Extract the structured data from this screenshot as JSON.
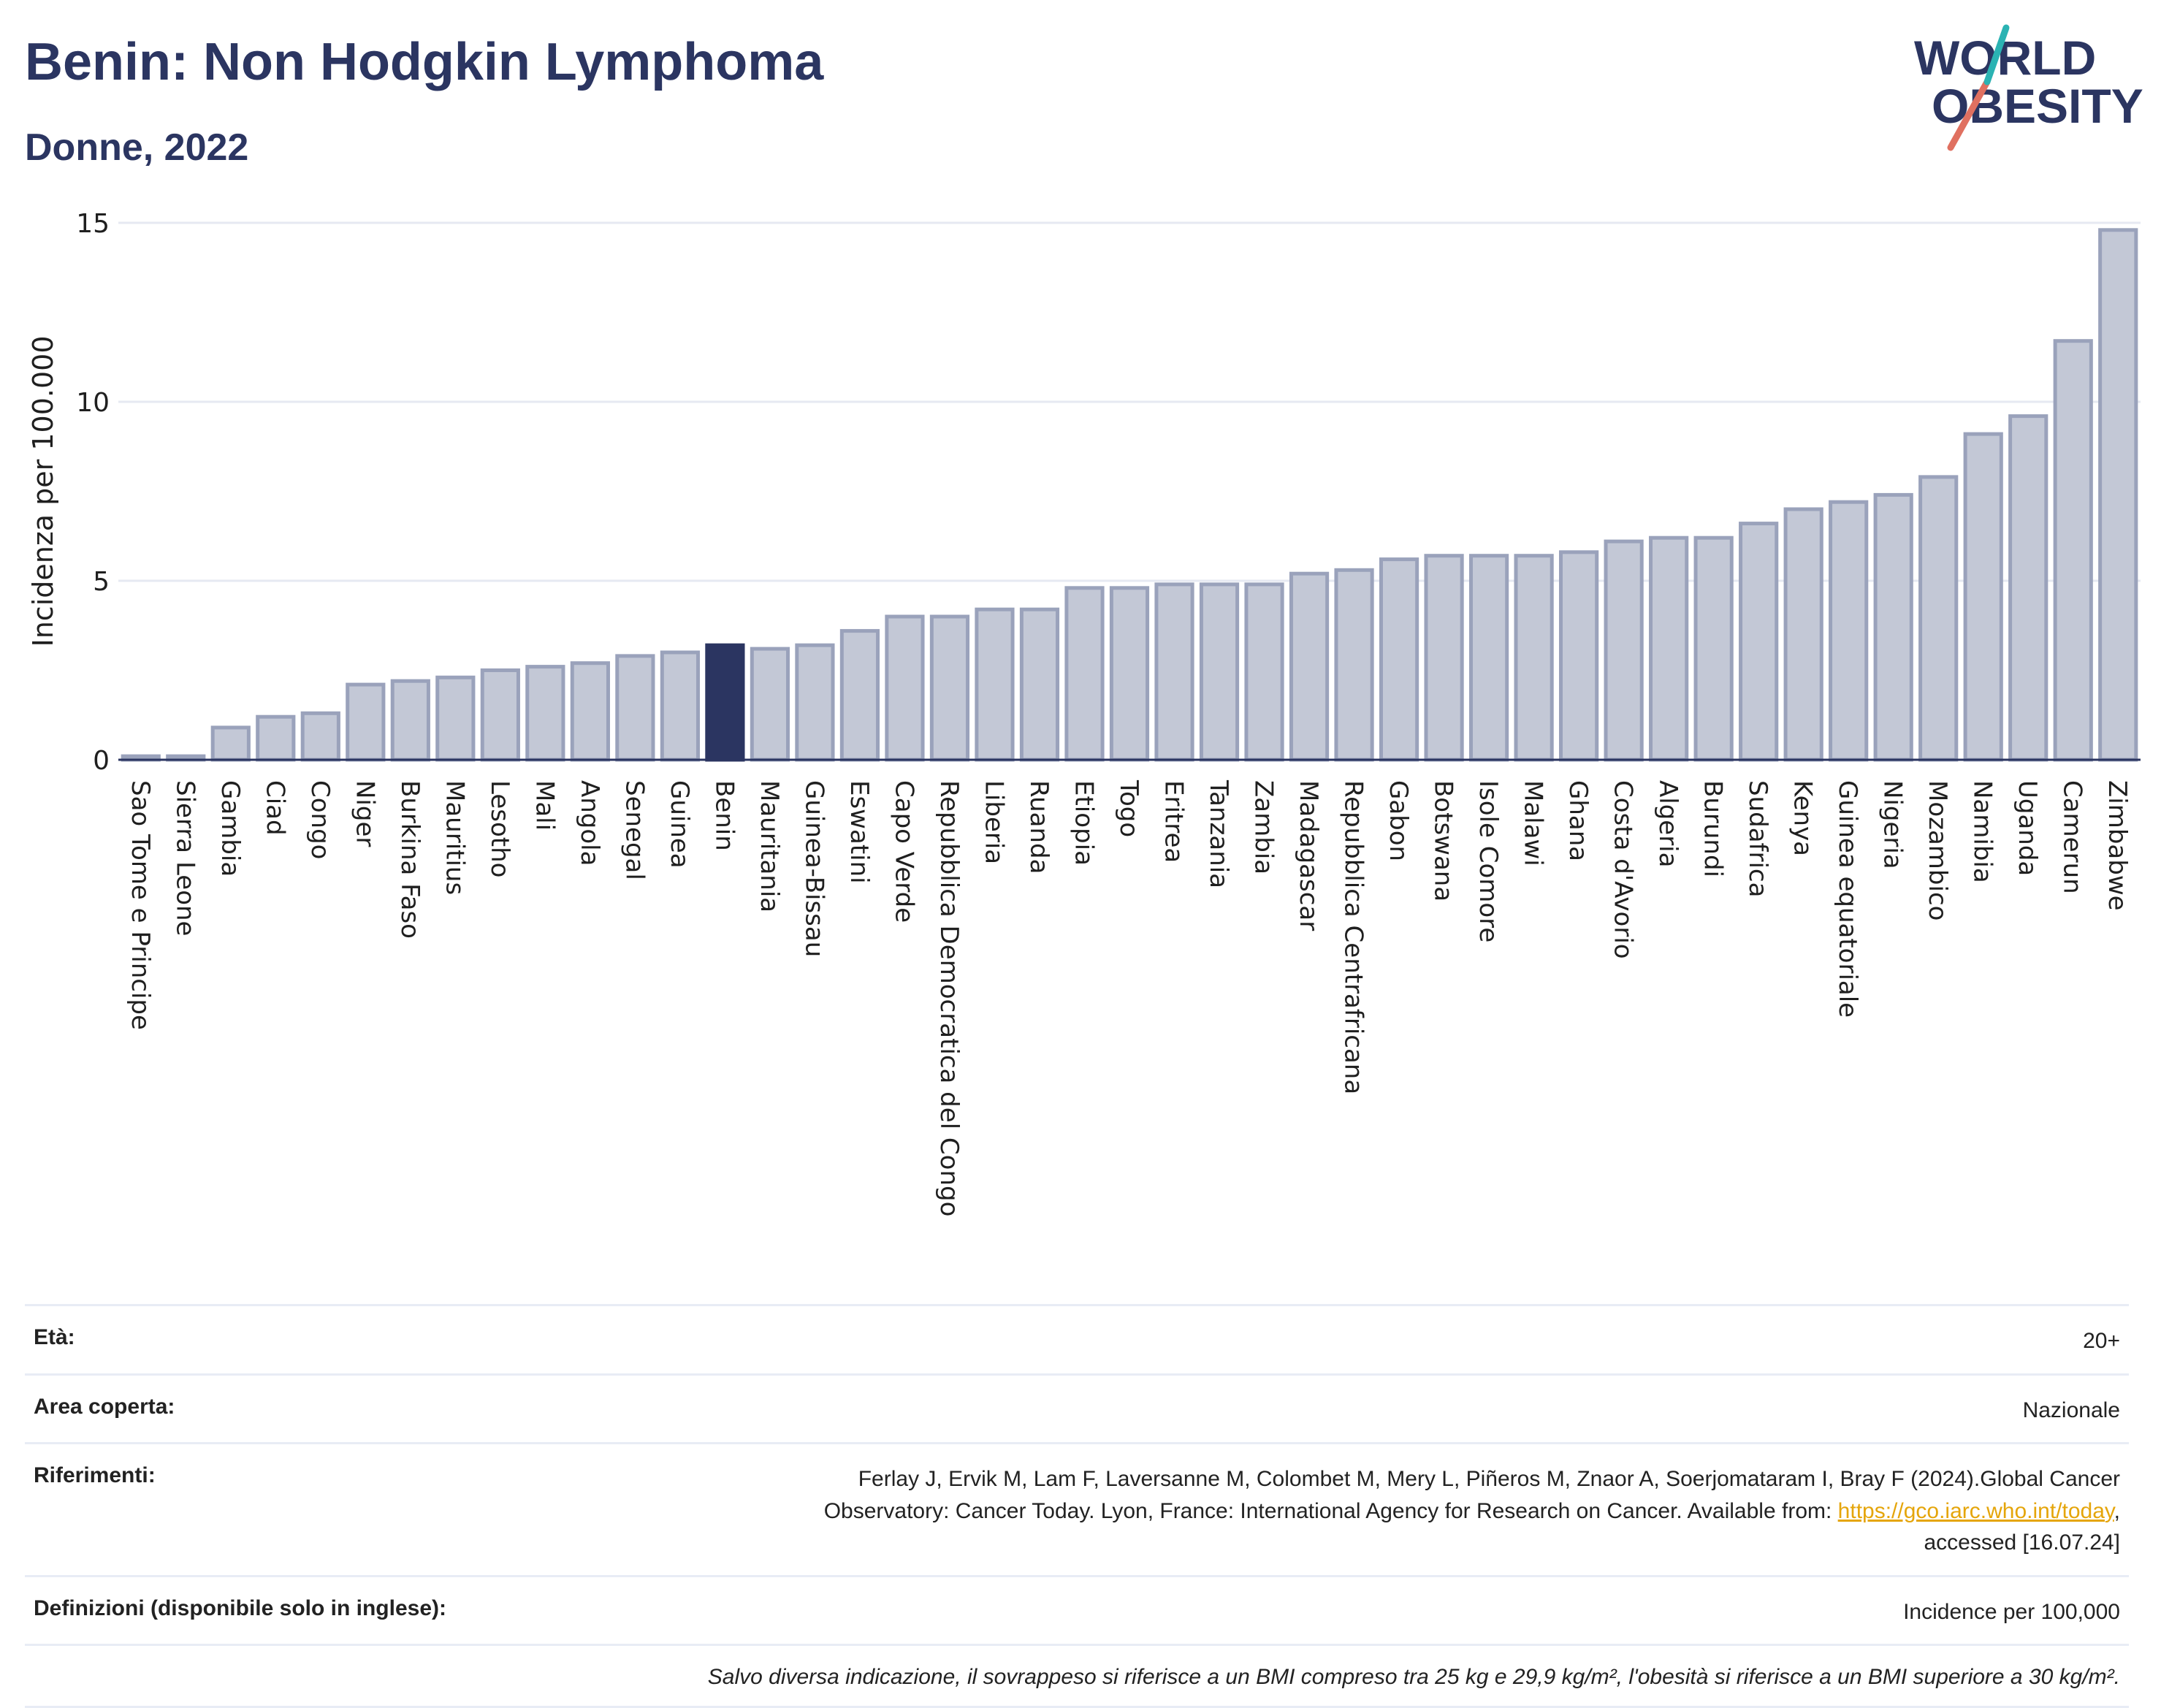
{
  "header": {
    "title": "Benin: Non Hodgkin Lymphoma",
    "subtitle": "Donne, 2022"
  },
  "logo": {
    "line1": "WORLD",
    "line2": "OBESITY"
  },
  "chart_data": {
    "type": "bar",
    "ylabel": "Incidenza per 100.000",
    "ylim": [
      0,
      15
    ],
    "yticks": [
      0,
      5,
      10,
      15
    ],
    "grid": true,
    "highlight": "Benin",
    "colors": {
      "bar": "#c3c8d6",
      "bar_edge": "#9aa2bb",
      "highlight": "#2b3561",
      "grid": "#e6e9f2"
    },
    "categories": [
      "Sao Tome e Principe",
      "Sierra Leone",
      "Gambia",
      "Ciad",
      "Congo",
      "Niger",
      "Burkina Faso",
      "Mauritius",
      "Lesotho",
      "Mali",
      "Angola",
      "Senegal",
      "Guinea",
      "Benin",
      "Mauritania",
      "Guinea-Bissau",
      "Eswatini",
      "Capo Verde",
      "Repubblica Democratica del Congo",
      "Liberia",
      "Ruanda",
      "Etiopia",
      "Togo",
      "Eritrea",
      "Tanzania",
      "Zambia",
      "Madagascar",
      "Repubblica Centrafricana",
      "Gabon",
      "Botswana",
      "Isole Comore",
      "Malawi",
      "Ghana",
      "Costa d'Avorio",
      "Algeria",
      "Burundi",
      "Sudafrica",
      "Kenya",
      "Guinea equatoriale",
      "Nigeria",
      "Mozambico",
      "Namibia",
      "Uganda",
      "Camerun",
      "Zimbabwe"
    ],
    "values": [
      0.1,
      0.1,
      0.9,
      1.2,
      1.3,
      2.1,
      2.2,
      2.3,
      2.5,
      2.6,
      2.7,
      2.9,
      3.0,
      3.2,
      3.1,
      3.2,
      3.6,
      4.0,
      4.0,
      4.2,
      4.2,
      4.8,
      4.8,
      4.9,
      4.9,
      4.9,
      5.2,
      5.3,
      5.6,
      5.7,
      5.7,
      5.7,
      5.8,
      6.1,
      6.2,
      6.2,
      6.6,
      7.0,
      7.2,
      7.4,
      7.9,
      9.1,
      9.6,
      11.7,
      14.8
    ]
  },
  "meta": {
    "rows": [
      {
        "label": "Età:",
        "value": "20+"
      },
      {
        "label": "Area coperta:",
        "value": "Nazionale"
      },
      {
        "label": "Riferimenti:",
        "value_line1": "Ferlay J, Ervik M, Lam F, Laversanne M, Colombet M, Mery L, Piñeros M, Znaor A, Soerjomataram I, Bray F (2024).Global Cancer",
        "value_line2": "Observatory: Cancer Today. Lyon, France: International Agency for Research on Cancer. Available from: ",
        "link": "https://gco.iarc.who.int/today",
        "value_line2_end": ",",
        "value_line3": "accessed [16.07.24]"
      },
      {
        "label": "Definizioni (disponibile solo in inglese):",
        "value": "Incidence per 100,000"
      }
    ],
    "note": "Salvo diversa indicazione, il sovrappeso si riferisce a un BMI compreso tra 25 kg e 29,9 kg/m², l'obesità si riferisce a un BMI superiore a 30 kg/m²."
  }
}
